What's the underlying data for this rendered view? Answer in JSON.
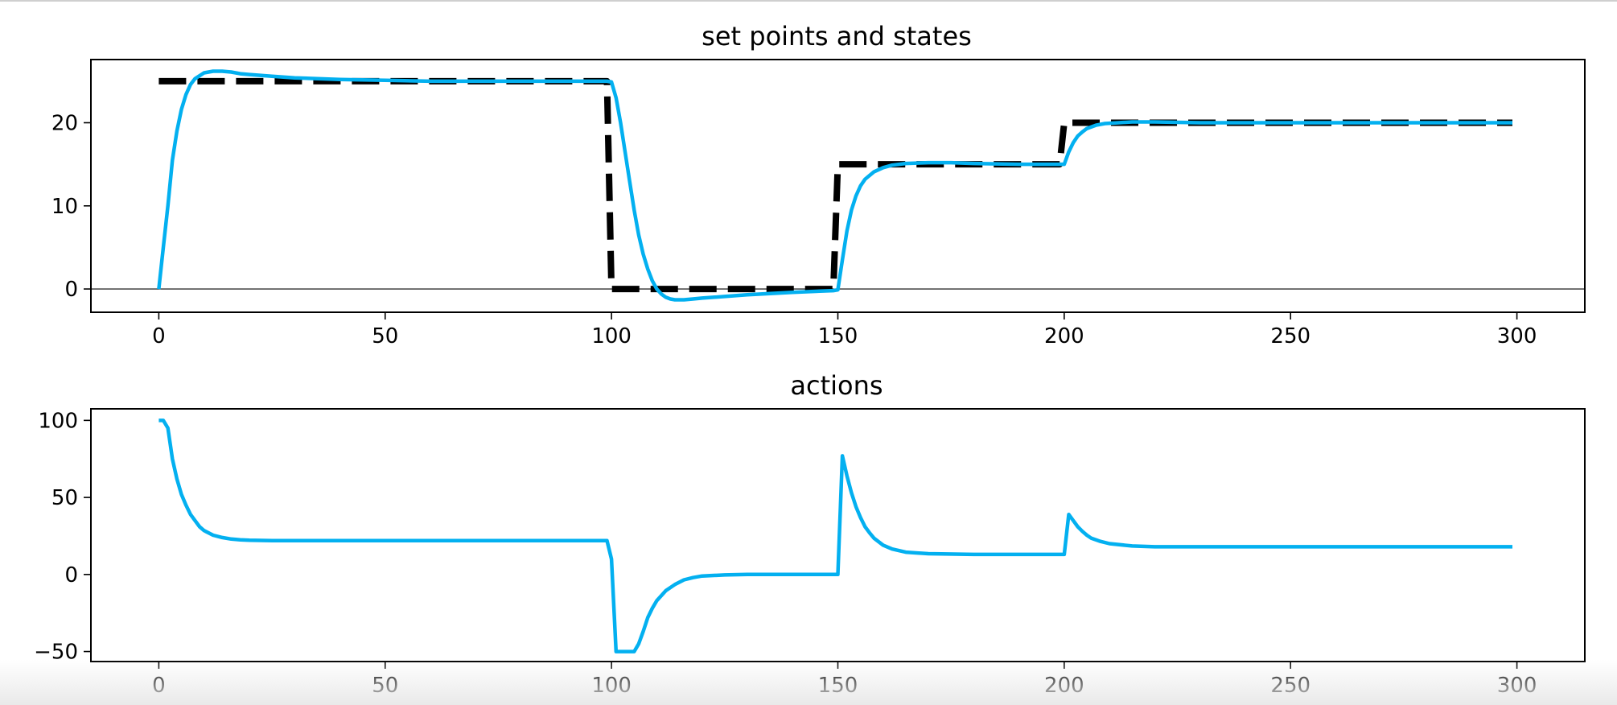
{
  "chart_data": [
    {
      "type": "line",
      "title": "set points and states",
      "xlabel": "",
      "ylabel": "",
      "xlim": [
        -15,
        315
      ],
      "ylim": [
        -2.8,
        27.6
      ],
      "xticks": [
        0,
        50,
        100,
        150,
        200,
        250,
        300
      ],
      "yticks": [
        0,
        10,
        20
      ],
      "grid": false,
      "zero_line": true,
      "series": [
        {
          "style": "dashed",
          "color": "#000000",
          "x": [
            0,
            99,
            100,
            149,
            150,
            199,
            200,
            299
          ],
          "y": [
            25,
            25,
            0,
            0,
            15,
            15,
            20,
            20
          ]
        },
        {
          "style": "solid",
          "color": "#03b0f0",
          "x": [
            0,
            1,
            2,
            3,
            4,
            5,
            6,
            7,
            8,
            10,
            12,
            14,
            16,
            18,
            20,
            25,
            30,
            40,
            50,
            60,
            80,
            99,
            100,
            101,
            102,
            103,
            104,
            105,
            106,
            107,
            108,
            109,
            110,
            111,
            112,
            113,
            114,
            116,
            118,
            120,
            125,
            130,
            140,
            149,
            150,
            151,
            152,
            153,
            154,
            155,
            156,
            158,
            160,
            162,
            165,
            170,
            175,
            180,
            190,
            199,
            200,
            201,
            202,
            203,
            204,
            205,
            207,
            209,
            212,
            215,
            220,
            230,
            250,
            270,
            299
          ],
          "y": [
            0,
            5,
            10,
            15.5,
            19,
            21.6,
            23.4,
            24.6,
            25.3,
            26,
            26.2,
            26.2,
            26.1,
            25.9,
            25.8,
            25.6,
            25.4,
            25.2,
            25.1,
            25.0,
            25.0,
            25.0,
            24.9,
            23,
            20,
            16.5,
            13,
            9.5,
            6.5,
            4.2,
            2.4,
            1.0,
            0.0,
            -0.6,
            -1.0,
            -1.2,
            -1.3,
            -1.3,
            -1.2,
            -1.1,
            -0.9,
            -0.7,
            -0.4,
            -0.2,
            -0.1,
            3.5,
            7,
            9.5,
            11.2,
            12.4,
            13.2,
            14.1,
            14.6,
            14.9,
            15.1,
            15.2,
            15.2,
            15.1,
            15.0,
            15.0,
            15.0,
            16.5,
            17.6,
            18.4,
            18.9,
            19.3,
            19.7,
            19.9,
            20.0,
            20.1,
            20.1,
            20.0,
            20.0,
            20.0,
            20.0
          ]
        }
      ]
    },
    {
      "type": "line",
      "title": "actions",
      "xlabel": "",
      "ylabel": "",
      "xlim": [
        -15,
        315
      ],
      "ylim": [
        -56.5,
        107.5
      ],
      "xticks": [
        0,
        50,
        100,
        150,
        200,
        250,
        300
      ],
      "yticks": [
        -50,
        0,
        50,
        100
      ],
      "grid": false,
      "series": [
        {
          "style": "solid",
          "color": "#03b0f0",
          "x": [
            0,
            1,
            2,
            3,
            4,
            5,
            6,
            7,
            8,
            9,
            10,
            12,
            14,
            16,
            18,
            20,
            25,
            30,
            40,
            60,
            80,
            99,
            100,
            101,
            102,
            103,
            104,
            105,
            106,
            107,
            108,
            109,
            110,
            112,
            114,
            116,
            118,
            120,
            125,
            130,
            140,
            149,
            150,
            151,
            152,
            153,
            154,
            155,
            156,
            157,
            158,
            160,
            162,
            165,
            170,
            180,
            190,
            199,
            200,
            201,
            202,
            203,
            204,
            205,
            206,
            208,
            210,
            215,
            220,
            230,
            250,
            270,
            299
          ],
          "y": [
            100,
            100,
            95,
            75,
            62,
            52,
            45,
            39,
            35,
            31,
            28.5,
            25.5,
            24,
            23,
            22.5,
            22.2,
            22,
            22,
            22,
            22,
            22,
            22,
            10,
            -50,
            -50,
            -50,
            -50,
            -50,
            -45,
            -37,
            -28,
            -22,
            -17,
            -10.5,
            -6.5,
            -3.5,
            -2,
            -1,
            -0.3,
            0,
            0,
            0,
            0,
            77,
            64,
            53,
            44,
            37,
            31,
            27,
            23.5,
            19,
            16.5,
            14.5,
            13.5,
            13,
            13,
            13,
            13,
            39,
            35,
            31,
            28,
            25.5,
            23.5,
            21.5,
            20,
            18.5,
            18,
            18,
            18,
            18,
            18
          ]
        }
      ]
    }
  ]
}
